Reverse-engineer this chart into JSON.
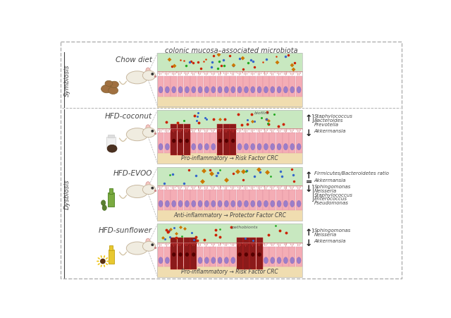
{
  "title": "colonic mucosa–associated microbiota",
  "bg_color": "#ffffff",
  "sections": [
    {
      "label": "Chow diet",
      "inflamed": false,
      "inf_type": 0
    },
    {
      "label": "HFD-coconut",
      "inflamed": true,
      "inf_type": 1
    },
    {
      "label": "HFD-EVOO",
      "inflamed": false,
      "inf_type": 2
    },
    {
      "label": "HFD-sunflower",
      "inflamed": true,
      "inf_type": 3
    }
  ],
  "symbiosis_label": "Symbiosis",
  "dysbiosis_label": "Dysbiosis",
  "annotations": [
    [],
    [
      {
        "arrow": "↑",
        "lines": [
          "Staphylococcus",
          "Bacteroides",
          "Prevotella"
        ]
      },
      {
        "arrow": "↓",
        "lines": [
          "Akkermansia"
        ]
      }
    ],
    [
      {
        "arrow": "↑",
        "lines": [
          "Firmicutes/Bacteroidetes ratio"
        ]
      },
      {
        "arrow": "=",
        "lines": [
          "Akkermansia"
        ]
      },
      {
        "arrow": "↓",
        "lines": [
          "Sphingomonas",
          "Neisseria",
          "Staphylococcus",
          "Enterococcus",
          "Pseudomonas"
        ]
      }
    ],
    [
      {
        "arrow": "↑",
        "lines": [
          "Sphingomonas",
          "Neisseria"
        ]
      },
      {
        "arrow": "↓",
        "lines": [
          "Akkermansia"
        ]
      }
    ]
  ],
  "inf_texts": [
    "",
    "Pro-inflammatory → Risk Factor CRC",
    "Anti-inflammatory → Protector Factor CRC",
    "Pro-inflammatory → Risk Factor CRC"
  ],
  "PINK": "#f4adb5",
  "PINK_LIGHT": "#fcd5da",
  "DARK_RED": "#8b1a1a",
  "BEIGE": "#f0ddb0",
  "GREEN": "#c8e8c0",
  "TEXT": "#444444",
  "BORDER": "#b0b0b0",
  "PINK_BODY": "#f8c8c8",
  "PURPLE": "#9b7ec8"
}
